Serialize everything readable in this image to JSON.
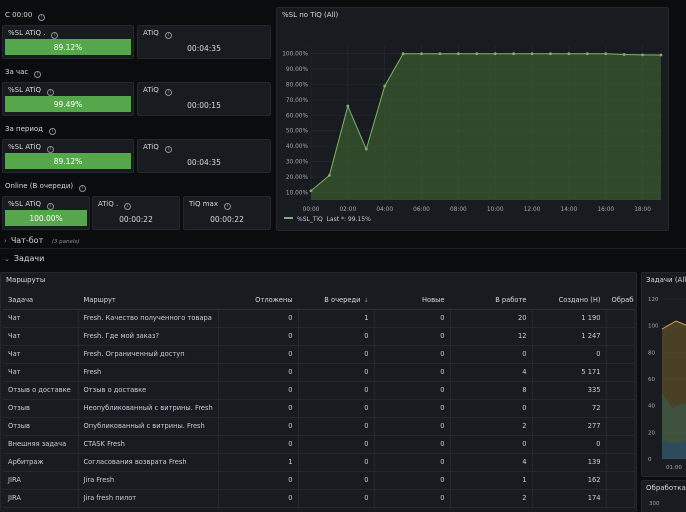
{
  "groups": [
    {
      "label": "С 00:00",
      "sl": {
        "title": "%SL ATiQ .",
        "value": "89.12%"
      },
      "atiq": {
        "title": "ATiQ",
        "value": "00:04:35"
      }
    },
    {
      "label": "За час",
      "sl": {
        "title": "%SL ATiQ",
        "value": "99.49%"
      },
      "atiq": {
        "title": "ATiQ",
        "value": "00:00:15"
      }
    },
    {
      "label": "За период",
      "sl": {
        "title": "%SL ATiQ",
        "value": "89.12%"
      },
      "atiq": {
        "title": "ATiQ",
        "value": "00:04:35"
      }
    }
  ],
  "online": {
    "label": "Online (В очереди)",
    "sl": {
      "title": "%SL ATiQ",
      "value": "100.00%"
    },
    "atiq": {
      "title": "ATiQ .",
      "value": "00:00:22"
    },
    "tiqmax": {
      "title": "TiQ max",
      "value": "00:00:22"
    }
  },
  "chart_panel": {
    "title": "%SL по TiQ (All)",
    "legend_label": "%SL_TiQ",
    "legend_last": "Last *: 99.15%"
  },
  "chart_data": {
    "type": "area",
    "x": [
      "00:00",
      "01:00",
      "02:00",
      "03:00",
      "04:00",
      "05:00",
      "06:00",
      "07:00",
      "08:00",
      "09:00",
      "10:00",
      "11:00",
      "12:00",
      "13:00",
      "14:00",
      "15:00",
      "16:00",
      "17:00",
      "18:00",
      "19:00"
    ],
    "series": [
      {
        "name": "%SL_TiQ",
        "values": [
          11,
          21,
          66,
          38,
          79,
          100,
          100,
          100,
          100,
          100,
          100,
          100,
          100,
          100,
          100,
          100,
          100,
          99.5,
          99.2,
          99.15
        ]
      }
    ],
    "x_ticks": [
      "00:00",
      "02:00",
      "04:00",
      "06:00",
      "08:00",
      "10:00",
      "12:00",
      "14:00",
      "16:00",
      "18:00"
    ],
    "y_ticks": [
      "10.00%",
      "20.00%",
      "30.00%",
      "40.00%",
      "50.00%",
      "60.00%",
      "70.00%",
      "80.00%",
      "90.00%",
      "100.00%"
    ],
    "ylim": [
      5,
      105
    ],
    "colors": {
      "line": "#7eb26d",
      "fill": "#3a5a30"
    }
  },
  "collapsed_row": {
    "title": "Чат-бот",
    "meta": "(3 panels)"
  },
  "tasks_row": {
    "title": "Задачи"
  },
  "routes_panel": {
    "title": "Маршруты",
    "columns": [
      "Задача",
      "Маршрут",
      "Отложены",
      "В очереди",
      "Новые",
      "В работе",
      "Создано (Н)",
      "Обрабо"
    ],
    "rows": [
      [
        "Чат",
        "Fresh. Качество полученного товара",
        "0",
        "1",
        "0",
        "20",
        "1 190"
      ],
      [
        "Чат",
        "Fresh. Где мой заказ?",
        "0",
        "0",
        "0",
        "12",
        "1 247"
      ],
      [
        "Чат",
        "Fresh. Ограниченный доступ",
        "0",
        "0",
        "0",
        "0",
        "0"
      ],
      [
        "Чат",
        "Fresh",
        "0",
        "0",
        "0",
        "4",
        "5 171"
      ],
      [
        "Отзыв о доставке",
        "Отзыв о доставке",
        "0",
        "0",
        "0",
        "8",
        "335"
      ],
      [
        "Отзыв",
        "Неопубликованный с витрины. Fresh",
        "0",
        "0",
        "0",
        "0",
        "72"
      ],
      [
        "Отзыв",
        "Опубликованный с витрины. Fresh",
        "0",
        "0",
        "0",
        "2",
        "277"
      ],
      [
        "Внешняя задача",
        "CTASK Fresh",
        "0",
        "0",
        "0",
        "0",
        "0"
      ],
      [
        "Арбитраж",
        "Согласования возврата Fresh",
        "1",
        "0",
        "0",
        "4",
        "139"
      ],
      [
        "JIRA",
        "Jira Fresh",
        "0",
        "0",
        "0",
        "1",
        "162"
      ],
      [
        "JIRA",
        "Jira fresh пилот",
        "0",
        "0",
        "0",
        "2",
        "174"
      ]
    ]
  },
  "side_panel_1": {
    "title": "Задачи (All",
    "y_top": "120",
    "y_ticks": [
      "120",
      "100",
      "80",
      "60",
      "40",
      "20",
      "0"
    ],
    "x_tick": "01:00"
  },
  "side_panel_2": {
    "title": "Обработка",
    "y_top": "300"
  }
}
